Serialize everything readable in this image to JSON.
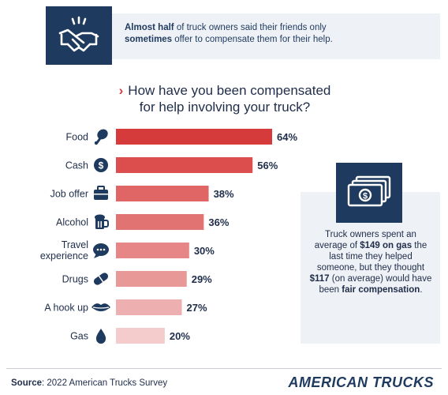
{
  "banner": {
    "icon": "handshake-icon",
    "text_bold_1": "Almost half",
    "text_1": " of truck owners said their friends only ",
    "text_bold_2": "sometimes",
    "text_2": " offer to compensate them for their help."
  },
  "chart_data": {
    "type": "bar",
    "orientation": "horizontal",
    "title": "How have you been compensated for help involving your truck?",
    "title_line_1": "How have you been compensated",
    "title_line_2": "for help involving your truck?",
    "categories": [
      "Food",
      "Cash",
      "Job offer",
      "Alcohol",
      "Travel experience",
      "Drugs",
      "A hook up",
      "Gas"
    ],
    "values": [
      64,
      56,
      38,
      36,
      30,
      29,
      27,
      20
    ],
    "value_labels": [
      "64%",
      "56%",
      "38%",
      "36%",
      "30%",
      "29%",
      "27%",
      "20%"
    ],
    "icons": [
      "drumstick-icon",
      "dollar-coin-icon",
      "briefcase-icon",
      "beer-mug-icon",
      "speech-bubble-icon",
      "pill-icon",
      "lips-icon",
      "droplet-icon"
    ],
    "bar_colors": [
      "#d63b3b",
      "#dc4d4d",
      "#e06666",
      "#e27373",
      "#e68686",
      "#e99898",
      "#edafaf",
      "#f4cccc"
    ],
    "unit": "%",
    "xlim": [
      0,
      64
    ],
    "grid": false,
    "legend": "none"
  },
  "side_panel": {
    "icon": "cash-stack-icon",
    "text_1": "Truck owners spent an average of ",
    "bold_1": "$149 on gas",
    "text_2": " the last time they helped someone, but they thought ",
    "bold_2": "$117",
    "text_3": " (on average) would have been ",
    "bold_3": "fair compensation",
    "text_4": "."
  },
  "footer": {
    "source_label": "Source",
    "source_text": ": 2022 American Trucks Survey",
    "brand": "AMERICAN TRUCKS"
  },
  "colors": {
    "navy": "#1f3a5f",
    "accent_red": "#d63b3b",
    "panel_bg": "#eef1f5"
  }
}
